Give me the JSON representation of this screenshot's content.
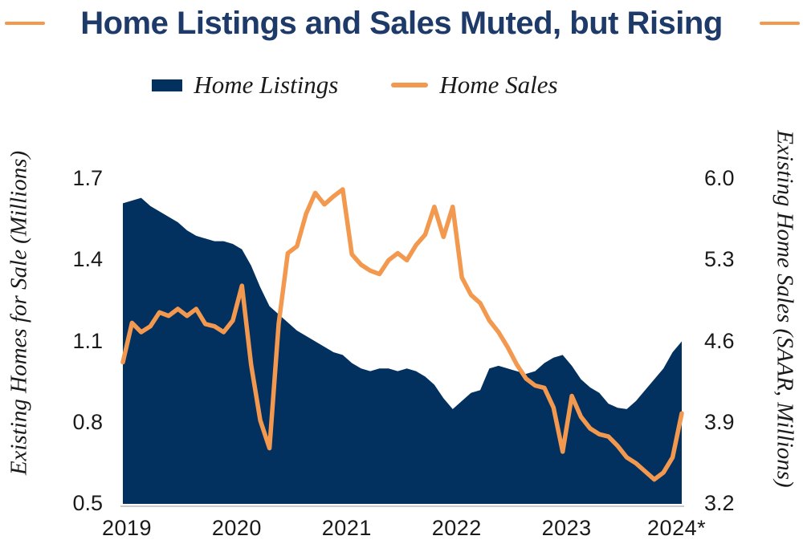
{
  "title": {
    "text": "Home Listings and Sales Muted, but Rising",
    "color": "#1e3a68",
    "accent_dash_color": "#f2994f"
  },
  "legend": {
    "items": [
      {
        "label": "Home Listings",
        "swatch": "area-swatch",
        "color": "#02305f"
      },
      {
        "label": "Home Sales",
        "swatch": "line-swatch",
        "color": "#f2994f"
      }
    ]
  },
  "colors": {
    "navy": "#02305f",
    "orange": "#f2994f",
    "axis_line": "#cccccc",
    "text": "#1a1a1a"
  },
  "chart_data": {
    "type": "combo",
    "subtype": [
      "area",
      "line"
    ],
    "frequency": "monthly",
    "months": [
      "2019-01",
      "2019-02",
      "2019-03",
      "2019-04",
      "2019-05",
      "2019-06",
      "2019-07",
      "2019-08",
      "2019-09",
      "2019-10",
      "2019-11",
      "2019-12",
      "2020-01",
      "2020-02",
      "2020-03",
      "2020-04",
      "2020-05",
      "2020-06",
      "2020-07",
      "2020-08",
      "2020-09",
      "2020-10",
      "2020-11",
      "2020-12",
      "2021-01",
      "2021-02",
      "2021-03",
      "2021-04",
      "2021-05",
      "2021-06",
      "2021-07",
      "2021-08",
      "2021-09",
      "2021-10",
      "2021-11",
      "2021-12",
      "2022-01",
      "2022-02",
      "2022-03",
      "2022-04",
      "2022-05",
      "2022-06",
      "2022-07",
      "2022-08",
      "2022-09",
      "2022-10",
      "2022-11",
      "2022-12",
      "2023-01",
      "2023-02",
      "2023-03",
      "2023-04",
      "2023-05",
      "2023-06",
      "2023-07",
      "2023-08",
      "2023-09",
      "2023-10",
      "2023-11",
      "2023-12",
      "2024-01",
      "2024-02"
    ],
    "x_tick_labels": [
      "2019",
      "2020",
      "2021",
      "2022",
      "2023",
      "2024*"
    ],
    "left_axis": {
      "label": "Existing Homes for Sale (Millions)",
      "ticks": [
        "1.7",
        "1.4",
        "1.1",
        "0.8",
        "0.5"
      ],
      "tick_values": [
        1.7,
        1.4,
        1.1,
        0.8,
        0.5
      ],
      "range": [
        0.5,
        1.7
      ]
    },
    "right_axis": {
      "label": "Existing Home Sales (SAAR, Millions)",
      "ticks": [
        "6.0",
        "5.3",
        "4.6",
        "3.9",
        "3.2"
      ],
      "tick_values": [
        6.0,
        5.3,
        4.6,
        3.9,
        3.2
      ],
      "range": [
        3.2,
        6.0
      ]
    },
    "series": [
      {
        "name": "Home Listings",
        "type": "area",
        "axis": "left",
        "color": "#02305f",
        "values": [
          1.61,
          1.62,
          1.63,
          1.6,
          1.58,
          1.56,
          1.54,
          1.51,
          1.49,
          1.48,
          1.47,
          1.47,
          1.46,
          1.44,
          1.38,
          1.3,
          1.23,
          1.2,
          1.17,
          1.14,
          1.12,
          1.1,
          1.08,
          1.06,
          1.05,
          1.02,
          1.0,
          0.99,
          1.0,
          1.0,
          0.99,
          1.0,
          0.99,
          0.97,
          0.94,
          0.89,
          0.85,
          0.88,
          0.91,
          0.92,
          1.0,
          1.01,
          1.0,
          0.99,
          0.98,
          0.99,
          1.02,
          1.04,
          1.05,
          1.01,
          0.96,
          0.93,
          0.91,
          0.87,
          0.855,
          0.85,
          0.88,
          0.92,
          0.96,
          1.0,
          1.06,
          1.1
        ]
      },
      {
        "name": "Home Sales",
        "type": "line",
        "axis": "right",
        "color": "#f2994f",
        "values": [
          4.42,
          4.76,
          4.68,
          4.73,
          4.85,
          4.82,
          4.88,
          4.82,
          4.88,
          4.75,
          4.73,
          4.68,
          4.78,
          5.08,
          4.4,
          3.92,
          3.68,
          4.75,
          5.36,
          5.42,
          5.7,
          5.88,
          5.78,
          5.85,
          5.91,
          5.35,
          5.26,
          5.21,
          5.18,
          5.3,
          5.36,
          5.3,
          5.43,
          5.52,
          5.76,
          5.5,
          5.76,
          5.15,
          5.0,
          4.93,
          4.78,
          4.68,
          4.55,
          4.4,
          4.28,
          4.22,
          4.2,
          4.03,
          3.65,
          4.13,
          3.95,
          3.85,
          3.8,
          3.78,
          3.7,
          3.6,
          3.55,
          3.48,
          3.41,
          3.47,
          3.6,
          3.98
        ]
      }
    ],
    "legend_position": "top",
    "grid": false
  }
}
